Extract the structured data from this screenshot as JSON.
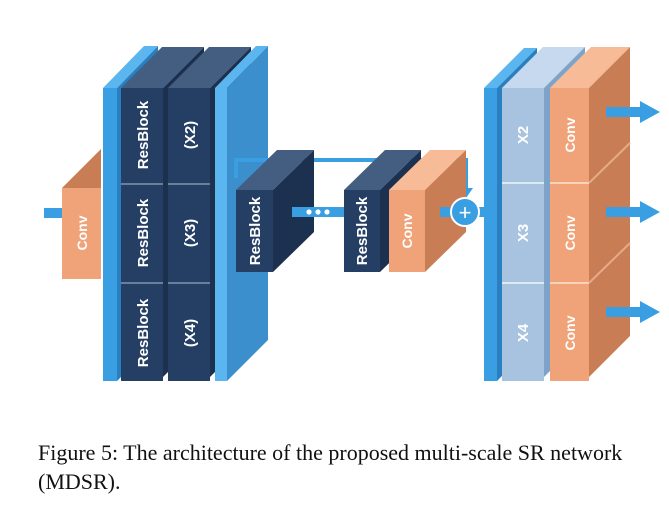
{
  "diagram": {
    "input_conv": "Conv",
    "preprocess": {
      "blocks": [
        "ResBlock",
        "ResBlock",
        "ResBlock"
      ],
      "scales": [
        "(X2)",
        "(X3)",
        "(X4)"
      ]
    },
    "main_branch": {
      "first_block": "ResBlock",
      "last_block": "ResBlock",
      "conv": "Conv",
      "add_symbol": "+"
    },
    "upsample": {
      "scales": [
        "X2",
        "X3",
        "X4"
      ],
      "convs": [
        "Conv",
        "Conv",
        "Conv"
      ]
    },
    "colors": {
      "blue_bar": "#3a9ee3",
      "blue_bar_side": "#2a7fc0",
      "resblock_front": "#243e64",
      "resblock_side": "#1c3050",
      "resblock_top": "#445e82",
      "conv_front": "#f0a278",
      "conv_side": "#c97d55",
      "upsample_front": "#a7c3e0",
      "arrow": "#3a9ee3"
    }
  },
  "caption": "Figure 5: The architecture of the proposed multi-scale SR network (MDSR)."
}
